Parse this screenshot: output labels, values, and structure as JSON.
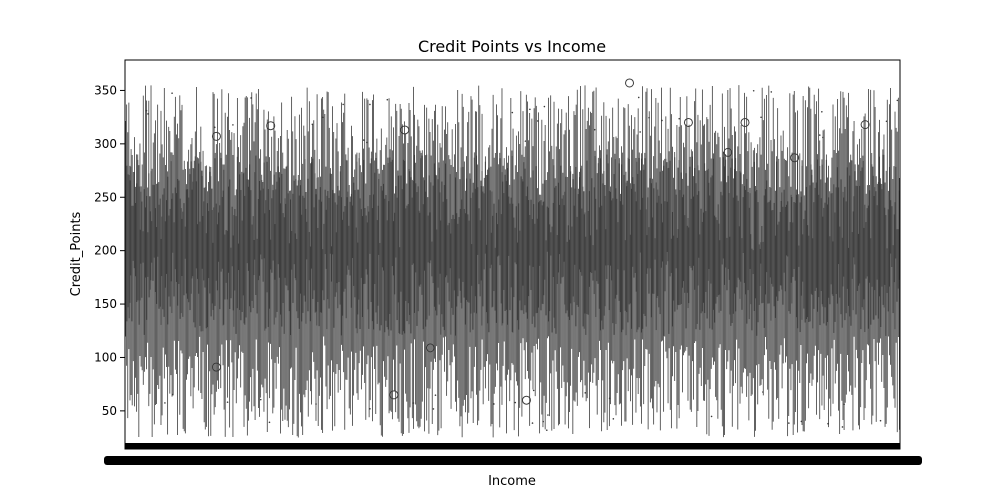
{
  "chart_data": {
    "type": "box",
    "title": "Credit Points vs Income",
    "xlabel": "Income",
    "ylabel": "Credit_Points",
    "ylim": [
      14.3,
      378.5
    ],
    "yticks": [
      50,
      100,
      150,
      200,
      250,
      300,
      350
    ],
    "grid": false,
    "legend": "none",
    "box_color": "#3b3b3b",
    "x_tick_labels_overlapping": true,
    "n_categories_estimate": 1000,
    "envelope": {
      "median_range": [
        150,
        250
      ],
      "q1_range": [
        120,
        200
      ],
      "q3_range": [
        200,
        290
      ],
      "lower_whisker_range": [
        25,
        120
      ],
      "upper_whisker_range": [
        250,
        355
      ]
    },
    "outliers": [
      {
        "x_frac": 0.118,
        "y": 307
      },
      {
        "x_frac": 0.188,
        "y": 317
      },
      {
        "x_frac": 0.361,
        "y": 313
      },
      {
        "x_frac": 0.347,
        "y": 65
      },
      {
        "x_frac": 0.394,
        "y": 109
      },
      {
        "x_frac": 0.518,
        "y": 60
      },
      {
        "x_frac": 0.651,
        "y": 357
      },
      {
        "x_frac": 0.727,
        "y": 320
      },
      {
        "x_frac": 0.778,
        "y": 292
      },
      {
        "x_frac": 0.8,
        "y": 320
      },
      {
        "x_frac": 0.864,
        "y": 287
      },
      {
        "x_frac": 0.955,
        "y": 318
      },
      {
        "x_frac": 0.118,
        "y": 91
      }
    ]
  }
}
